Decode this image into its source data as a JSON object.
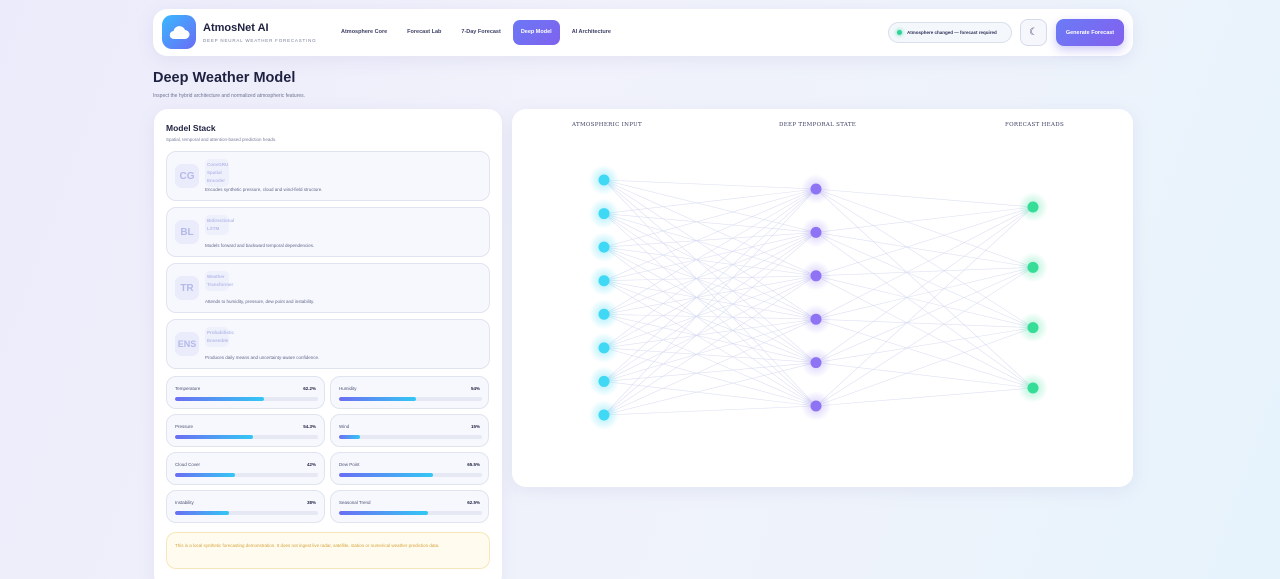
{
  "brand": {
    "name": "AtmosNet AI",
    "tagline": "DEEP NEURAL WEATHER FORECASTING"
  },
  "nav": {
    "links": [
      "Atmosphere Core",
      "Forecast Lab",
      "7-Day Forecast",
      "Deep Model",
      "AI Architecture"
    ],
    "active_index": 3
  },
  "status": {
    "text": "Atmosphere changed — forecast required",
    "color": "#2fd39a"
  },
  "theme_toggle": {
    "icon": "moon-icon",
    "glyph": "☾"
  },
  "actions": {
    "generate_label": "Generate Forecast"
  },
  "page": {
    "title": "Deep Weather Model",
    "subtitle": "Inspect the hybrid architecture and normalized atmospheric features."
  },
  "model_stack": {
    "title": "Model Stack",
    "subtitle": "Spatial, temporal and attention-based prediction heads.",
    "layers": [
      {
        "badge": "CG",
        "name": "ConvGRU Spatial Encoder",
        "description": "Encodes synthetic pressure, cloud and wind-field structure."
      },
      {
        "badge": "BL",
        "name": "Bidirectional LSTM",
        "description": "Models forward and backward temporal dependencies."
      },
      {
        "badge": "TR",
        "name": "Weather Transformer",
        "description": "Attends to humidity, pressure, dew point and instability."
      },
      {
        "badge": "ENS",
        "name": "Probabilistic Ensemble",
        "description": "Produces daily means and uncertainty-aware confidence."
      }
    ]
  },
  "metrics": [
    {
      "label": "Temperature",
      "value": "62.2%",
      "fraction": 0.622
    },
    {
      "label": "Humidity",
      "value": "54%",
      "fraction": 0.54
    },
    {
      "label": "Pressure",
      "value": "54.3%",
      "fraction": 0.543
    },
    {
      "label": "Wind",
      "value": "15%",
      "fraction": 0.15
    },
    {
      "label": "Cloud Cover",
      "value": "42%",
      "fraction": 0.42
    },
    {
      "label": "Dew Point",
      "value": "65.5%",
      "fraction": 0.655
    },
    {
      "label": "Instability",
      "value": "38%",
      "fraction": 0.38
    },
    {
      "label": "Seasonal Trend",
      "value": "62.5%",
      "fraction": 0.625
    }
  ],
  "disclaimer": "This is a local synthetic forecasting demonstration. It does not ingest live radar, satellite, station or numerical weather prediction data.",
  "network": {
    "columns": [
      {
        "label": "ATMOSPHERIC INPUT",
        "nodes": 8,
        "color": "#3fd8f5"
      },
      {
        "label": "DEEP TEMPORAL STATE",
        "nodes": 6,
        "color": "#8e74f4"
      },
      {
        "label": "FORECAST HEADS",
        "nodes": 4,
        "color": "#35dd97"
      }
    ],
    "edge_color": "#d5d9f0"
  }
}
